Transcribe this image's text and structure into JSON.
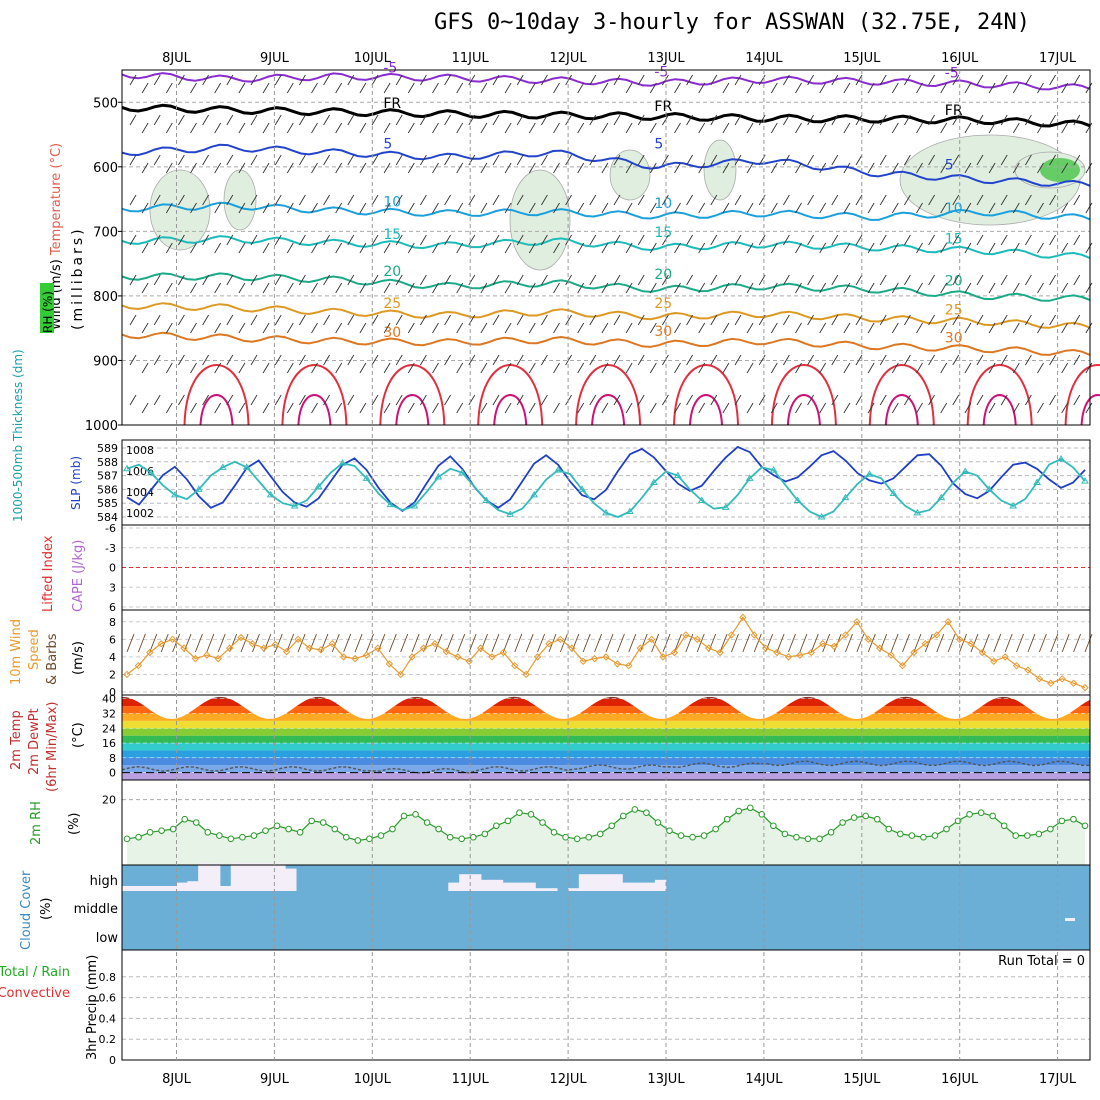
{
  "title": "GFS 0~10day 3-hourly for ASSWAN (32.75E, 24N)",
  "chart_data": [
    {
      "panel": "upper-air",
      "type": "heatmap",
      "ylabel": "(millibars)",
      "legend_labels": [
        "Wind (m/s)",
        "Temperature (°C)",
        "RH (%)"
      ],
      "legend_colors": {
        "wind": "#000000",
        "temperature": "#e06050",
        "rh": "#33cc33"
      },
      "y_ticks": [
        "500",
        "600",
        "700",
        "800",
        "900",
        "1000"
      ],
      "ylim": [
        1000,
        450
      ],
      "isotherms": [
        {
          "label": "-5",
          "color": "#8a2bd0",
          "levels_mb": [
            457,
            464,
            460,
            462,
            466,
            470,
            465,
            468,
            472,
            478
          ]
        },
        {
          "label": "FR",
          "color": "#000000",
          "levels_mb": [
            508,
            512,
            515,
            518,
            520,
            522,
            525,
            526,
            528,
            535
          ]
        },
        {
          "label": "5",
          "color": "#2244cc",
          "levels_mb": [
            578,
            570,
            578,
            585,
            578,
            600,
            590,
            610,
            620,
            628
          ]
        },
        {
          "label": "10",
          "color": "#1aa0dd",
          "levels_mb": [
            665,
            660,
            668,
            672,
            670,
            676,
            672,
            678,
            670,
            680
          ]
        },
        {
          "label": "15",
          "color": "#1bbbbb",
          "levels_mb": [
            715,
            712,
            718,
            722,
            715,
            725,
            720,
            725,
            730,
            740
          ]
        },
        {
          "label": "20",
          "color": "#1aaa88",
          "levels_mb": [
            770,
            770,
            775,
            785,
            780,
            790,
            785,
            790,
            800,
            805
          ]
        },
        {
          "label": "25",
          "color": "#dd9922",
          "levels_mb": [
            815,
            818,
            825,
            830,
            825,
            832,
            828,
            835,
            840,
            848
          ]
        },
        {
          "label": "30",
          "color": "#dd7722",
          "levels_mb": [
            860,
            865,
            870,
            872,
            868,
            875,
            870,
            878,
            882,
            890
          ]
        }
      ],
      "contour_labels": [
        "-5",
        "FR",
        "5",
        "10",
        "15",
        "20",
        "25",
        "30"
      ]
    },
    {
      "panel": "thickness-slp",
      "type": "line",
      "left_axis_label": "1000-500mb Thickness (dm)",
      "right_axis_label": "SLP (mb)",
      "left_ticks": [
        "589",
        "588",
        "587",
        "586",
        "585",
        "584"
      ],
      "right_ticks": [
        "1008",
        "1006",
        "1004",
        "1002"
      ],
      "series": [
        {
          "name": "SLP",
          "color": "#1f3fc8",
          "values": [
            1003.5,
            1002.8,
            1004.2,
            1005.6,
            1006.4,
            1005.2,
            1003.6,
            1002.5,
            1003.0,
            1004.6,
            1006.3,
            1007.0,
            1005.5,
            1004.0,
            1003.0,
            1002.6,
            1003.4,
            1005.0,
            1006.6,
            1007.2,
            1006.1,
            1004.4,
            1003.0,
            1002.2,
            1003.0,
            1004.8,
            1006.5,
            1007.4,
            1006.2,
            1004.5,
            1003.2,
            1002.5,
            1003.3,
            1005.0,
            1006.7,
            1007.5,
            1006.6,
            1005.0,
            1003.7,
            1003.3,
            1004.2,
            1006.0,
            1007.6,
            1008.1,
            1007.3,
            1006.0,
            1004.8,
            1004.1,
            1004.6,
            1006.0,
            1007.3,
            1008.3,
            1007.8,
            1006.4,
            1005.6,
            1005.0,
            1005.4,
            1006.4,
            1007.5,
            1007.9,
            1007.0,
            1005.8,
            1005.1,
            1004.8,
            1005.3,
            1006.4,
            1007.5,
            1007.6,
            1006.5,
            1004.8,
            1003.8,
            1003.4,
            1004.1,
            1005.4,
            1006.6,
            1006.8,
            1006.2,
            1005.2,
            1004.4,
            1004.9,
            1006.1
          ]
        },
        {
          "name": "Thickness",
          "color": "#33bbbb",
          "values": [
            587.5,
            587.8,
            587.2,
            586.3,
            585.6,
            585.3,
            586.0,
            587.0,
            587.6,
            588.0,
            587.6,
            586.6,
            585.6,
            585.0,
            584.8,
            585.2,
            586.2,
            587.2,
            587.9,
            587.7,
            586.8,
            585.7,
            584.9,
            584.5,
            584.8,
            585.8,
            586.9,
            587.5,
            587.2,
            586.2,
            585.2,
            584.5,
            584.2,
            584.6,
            585.6,
            586.7,
            587.4,
            587.1,
            586.0,
            585.0,
            584.3,
            584.0,
            584.4,
            585.4,
            586.5,
            587.3,
            587.0,
            586.0,
            585.2,
            584.6,
            584.7,
            585.6,
            586.8,
            587.6,
            587.4,
            586.3,
            585.2,
            584.4,
            584.0,
            584.4,
            585.4,
            586.4,
            587.1,
            586.8,
            585.7,
            584.8,
            584.3,
            584.5,
            585.4,
            586.5,
            587.3,
            587.0,
            586.0,
            585.2,
            584.8,
            585.3,
            586.5,
            587.8,
            588.2,
            587.6,
            586.6
          ]
        }
      ]
    },
    {
      "panel": "stability",
      "type": "line",
      "left_axis_label": "Lifted Index",
      "right_axis_label": "CAPE (J/kg)",
      "left_ticks": [
        "-6",
        "-3",
        "0",
        "3",
        "6"
      ],
      "reference_line": 0,
      "series": [
        {
          "name": "Lifted Index",
          "color": "#e03030",
          "values": []
        }
      ]
    },
    {
      "panel": "wind-10m",
      "type": "line",
      "ylabel": "10m Wind Speed & Barbs (m/s)",
      "y_ticks": [
        "8",
        "6",
        "4",
        "2",
        "0"
      ],
      "ylim": [
        0,
        9
      ],
      "series": [
        {
          "name": "10m Wind Speed",
          "color": "#e89a30",
          "values": [
            2.0,
            3.0,
            4.5,
            5.5,
            6.0,
            5.0,
            3.8,
            4.2,
            3.8,
            5.0,
            6.2,
            5.5,
            5.0,
            5.4,
            4.6,
            6.0,
            5.0,
            4.8,
            5.5,
            4.0,
            3.8,
            4.2,
            5.0,
            3.2,
            2.0,
            4.0,
            5.0,
            5.5,
            4.6,
            4.0,
            3.5,
            5.0,
            4.0,
            4.5,
            3.0,
            2.0,
            4.0,
            5.5,
            6.0,
            5.0,
            3.5,
            3.8,
            4.0,
            3.2,
            3.0,
            5.0,
            6.0,
            4.0,
            4.5,
            6.5,
            6.0,
            5.0,
            4.5,
            6.5,
            8.5,
            6.5,
            5.0,
            4.5,
            4.0,
            4.2,
            4.5,
            5.5,
            5.2,
            6.5,
            8.0,
            6.0,
            5.0,
            4.2,
            3.0,
            4.5,
            5.5,
            6.5,
            8.0,
            6.0,
            5.5,
            4.5,
            3.5,
            4.0,
            3.0,
            2.5,
            1.5,
            1.0,
            1.5,
            1.0,
            0.5
          ]
        }
      ]
    },
    {
      "panel": "temp-2m",
      "type": "area",
      "ylabel": "2m Temp 2m DewPt (6hr Min/Max) (°C)",
      "y_ticks": [
        "40",
        "32",
        "24",
        "16",
        "8",
        "0"
      ],
      "ylim": [
        -4,
        42
      ],
      "daily_max_c": [
        41,
        41,
        41,
        41,
        41,
        41,
        41,
        41,
        41,
        41
      ],
      "daily_min_c": [
        29,
        28,
        28,
        28,
        28,
        28,
        28,
        28,
        28,
        28
      ],
      "dewpoint_c": [
        2,
        2,
        1,
        2,
        3,
        4,
        5,
        5,
        5,
        5
      ]
    },
    {
      "panel": "rh-2m",
      "type": "line",
      "ylabel": "2m RH (%)",
      "y_ticks": [
        "20"
      ],
      "ylim": [
        0,
        26
      ],
      "series": [
        {
          "name": "2m RH",
          "color": "#2a9a2a",
          "values": [
            8.0,
            8.5,
            10.0,
            10.5,
            11.0,
            14.0,
            13.0,
            10.0,
            9.0,
            8.0,
            8.5,
            9.0,
            10.5,
            12.0,
            11.0,
            10.0,
            13.5,
            13.0,
            11.0,
            8.5,
            7.5,
            8.0,
            9.0,
            11.0,
            15.0,
            15.5,
            13.0,
            11.0,
            8.5,
            8.0,
            8.5,
            9.5,
            12.0,
            13.5,
            16.0,
            15.5,
            13.0,
            10.0,
            8.5,
            8.0,
            8.5,
            9.5,
            12.0,
            15.0,
            17.0,
            16.0,
            13.0,
            10.5,
            9.0,
            8.5,
            9.0,
            11.0,
            14.0,
            16.5,
            17.5,
            15.5,
            12.0,
            9.5,
            8.5,
            8.0,
            8.0,
            10.0,
            13.0,
            14.5,
            15.0,
            14.0,
            11.0,
            9.5,
            9.0,
            8.5,
            9.0,
            11.0,
            13.5,
            15.5,
            16.0,
            15.0,
            12.0,
            9.0,
            9.0,
            9.5,
            11.0,
            13.5,
            14.0,
            12.0
          ]
        }
      ]
    },
    {
      "panel": "cloud-cover",
      "type": "bar",
      "ylabel": "Cloud Cover (%)",
      "levels": [
        "high",
        "middle",
        "low"
      ],
      "high_cover_pct": [
        18,
        18,
        18,
        18,
        18,
        30,
        35,
        100,
        100,
        18,
        100,
        100,
        100,
        100,
        100,
        80,
        0,
        0,
        0,
        0,
        0,
        0,
        0,
        0,
        0,
        0,
        0,
        0,
        0,
        0,
        30,
        60,
        60,
        40,
        40,
        30,
        30,
        30,
        10,
        10,
        0,
        10,
        60,
        60,
        60,
        60,
        30,
        30,
        30,
        40,
        0,
        0,
        0,
        0,
        0,
        0,
        0,
        0,
        0,
        0,
        0,
        0,
        0,
        0,
        0,
        0,
        0,
        0,
        0,
        0,
        0,
        0,
        0,
        0,
        0,
        0,
        0,
        0,
        0,
        0,
        0,
        0,
        0,
        0,
        0,
        0,
        0,
        0,
        0
      ]
    },
    {
      "panel": "precip",
      "type": "bar",
      "ylabel": "3hr Precip (mm)",
      "legend_labels": [
        "Total / Rain",
        "Convective"
      ],
      "legend_colors": {
        "total": "#22aa22",
        "convective": "#e03030"
      },
      "y_ticks": [
        "0.8",
        "0.6",
        "0.4",
        "0.2",
        "0"
      ],
      "ylim": [
        0,
        1.0
      ],
      "annotation": "Run Total = 0",
      "values": []
    }
  ],
  "x_axis": {
    "day_labels": [
      "8JUL",
      "9JUL",
      "10JUL",
      "11JUL",
      "12JUL",
      "13JUL",
      "14JUL",
      "15JUL",
      "16JUL",
      "17JUL"
    ]
  }
}
